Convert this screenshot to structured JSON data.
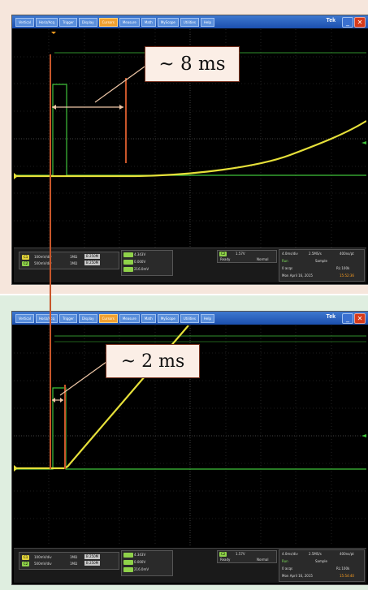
{
  "menu": {
    "items": [
      "Vertical",
      "Horiz/Acq",
      "Trigger",
      "Display",
      "Cursors",
      "Measure",
      "Math",
      "MyScope",
      "Utilities",
      "Help"
    ],
    "active_index": 4
  },
  "brand": "Tek",
  "window": {
    "minimize_glyph": "_",
    "close_glyph": "✕"
  },
  "top": {
    "ch1_label": "C1",
    "ch1_scale": "100mV/div",
    "ch1_imp": "1MΩ",
    "ch1_bw": "B 250M",
    "ch2_label": "C2",
    "ch2_scale": "500mV/div",
    "ch2_imp": "1MΩ",
    "ch2_bw": "B 250M",
    "meas1": "4.343V",
    "meas2": "0.000V",
    "meas3": "216.0mV",
    "trig_ch": "C2",
    "trig_level": "1.57V",
    "trig_state": "Ready",
    "trig_mode": "Normal",
    "timebase": "4.0ms/div",
    "sample_rate": "2.5MS/s",
    "record_len": "400ns/pt",
    "run_state": "Run",
    "acq_mode": "Sample",
    "acq_count_label": "0 acqs",
    "record_points": "RL:100k",
    "date": "Mon April 16, 2015",
    "time": "15:52:36",
    "callout": "~ 8 ms"
  },
  "bottom": {
    "ch1_label": "C1",
    "ch1_scale": "100mV/div",
    "ch1_imp": "1MΩ",
    "ch1_bw": "B 250M",
    "ch2_label": "C2",
    "ch2_scale": "500mV/div",
    "ch2_imp": "1MΩ",
    "ch2_bw": "B 250M",
    "meas1": "4.343V",
    "meas2": "0.000V",
    "meas3": "216.0mV",
    "trig_ch": "C2",
    "trig_level": "1.57V",
    "trig_state": "Ready",
    "trig_mode": "Normal",
    "timebase": "4.0ms/div",
    "sample_rate": "2.5MS/s",
    "record_len": "400ns/pt",
    "run_state": "Run",
    "acq_mode": "Sample",
    "acq_count_label": "0 acqs",
    "record_points": "RL:100k",
    "date": "Mon April 16, 2015",
    "time": "15:54:40",
    "callout": "~ 2 ms"
  },
  "colors": {
    "ch1_trace": "#e6e03a",
    "ch2_trace": "#3fc23a",
    "marker": "#c8562a",
    "grid": "#3a3a3a"
  }
}
